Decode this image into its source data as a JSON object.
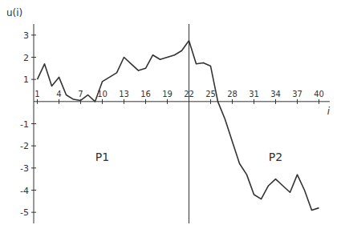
{
  "chart_data": {
    "type": "line",
    "x": [
      1,
      2,
      3,
      4,
      5,
      6,
      7,
      8,
      9,
      10,
      11,
      12,
      13,
      14,
      15,
      16,
      17,
      18,
      19,
      20,
      21,
      22,
      23,
      24,
      25,
      26,
      27,
      28,
      29,
      30,
      31,
      32,
      33,
      34,
      35,
      36,
      37,
      38,
      39,
      40
    ],
    "values": [
      1.0,
      1.7,
      0.7,
      1.1,
      0.3,
      0.1,
      0.05,
      0.3,
      0.0,
      0.9,
      1.1,
      1.3,
      2.0,
      1.7,
      1.4,
      1.5,
      2.1,
      1.9,
      2.0,
      2.1,
      2.3,
      2.75,
      1.7,
      1.75,
      1.6,
      0.0,
      -0.8,
      -1.8,
      -2.8,
      -3.3,
      -4.2,
      -4.4,
      -3.8,
      -3.5,
      -3.8,
      -4.1,
      -3.3,
      -4.0,
      -4.9,
      -4.8
    ],
    "color": "#333333",
    "x_label": "i",
    "y_label": "u(i)",
    "xlim": [
      0.5,
      41.5
    ],
    "ylim": [
      -5.5,
      3.5
    ],
    "xticks": [
      1,
      4,
      7,
      10,
      13,
      16,
      19,
      22,
      25,
      28,
      31,
      34,
      37,
      40
    ],
    "yticks": [
      -5,
      -4,
      -3,
      -2,
      -1,
      1,
      2,
      3
    ],
    "vline": 22,
    "hline": 0,
    "annotations": [
      {
        "text": "P1",
        "x": 10,
        "y": -2.5
      },
      {
        "text": "P2",
        "x": 34,
        "y": -2.5
      }
    ],
    "grid": false
  }
}
